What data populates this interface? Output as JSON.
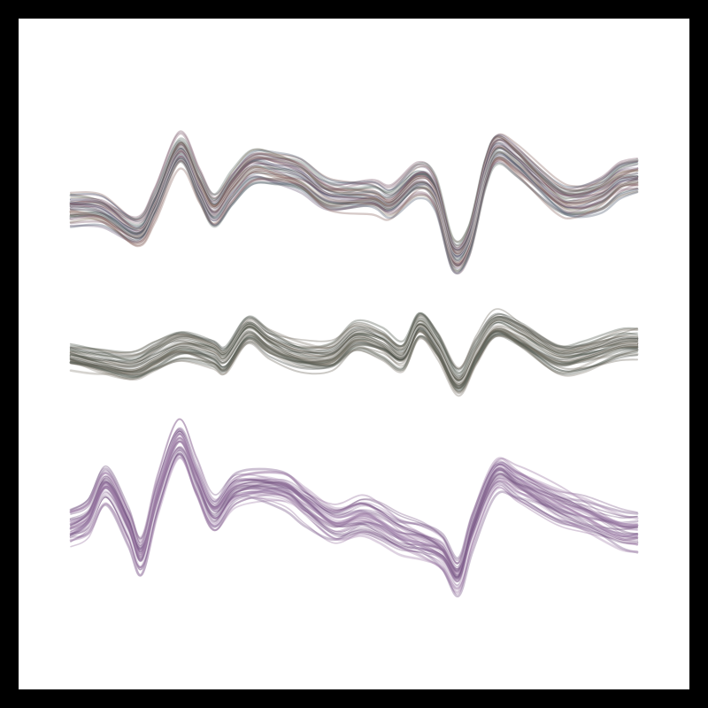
{
  "artwork": {
    "background_color": "#ffffff",
    "frame_color": "#000000",
    "bands": [
      {
        "name": "top-band",
        "colors": [
          "#7a5a6a",
          "#5e6c68",
          "#8a6660",
          "#4e5a6e",
          "#6e5c78",
          "#8a7a6a"
        ],
        "stroke_count": 40,
        "spread": 20,
        "opacity": 0.35
      },
      {
        "name": "middle-band",
        "colors": [
          "#4a5248",
          "#6a6458",
          "#525a50",
          "#7a7468",
          "#3e4640",
          "#8a8478"
        ],
        "stroke_count": 40,
        "spread": 17,
        "opacity": 0.35
      },
      {
        "name": "bottom-band",
        "colors": [
          "#8a6a94",
          "#9a7aa2",
          "#7a5a88",
          "#a88ab0",
          "#6e4e7c",
          "#b498bc"
        ],
        "stroke_count": 40,
        "spread": 22,
        "opacity": 0.38
      }
    ]
  }
}
